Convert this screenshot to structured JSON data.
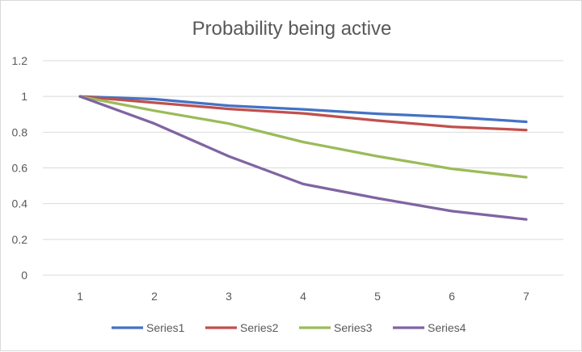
{
  "chart_data": {
    "type": "line",
    "title": "Probability being active",
    "xlabel": "",
    "ylabel": "",
    "categories": [
      "1",
      "2",
      "3",
      "4",
      "5",
      "6",
      "7"
    ],
    "ylim": [
      0,
      1.2
    ],
    "yticks": [
      0,
      0.2,
      0.4,
      0.6,
      0.8,
      1,
      1.2
    ],
    "ytick_labels": [
      "0",
      "0.2",
      "0.4",
      "0.6",
      "0.8",
      "1",
      "1.2"
    ],
    "grid": true,
    "legend_position": "bottom",
    "series": [
      {
        "name": "Series1",
        "color": "#4472c4",
        "values": [
          1.0,
          0.985,
          0.948,
          0.928,
          0.903,
          0.885,
          0.858
        ]
      },
      {
        "name": "Series2",
        "color": "#c0504d",
        "values": [
          1.0,
          0.965,
          0.93,
          0.905,
          0.865,
          0.83,
          0.812
        ]
      },
      {
        "name": "Series3",
        "color": "#9bbb59",
        "values": [
          1.0,
          0.92,
          0.848,
          0.745,
          0.665,
          0.595,
          0.548
        ]
      },
      {
        "name": "Series4",
        "color": "#8064a2",
        "values": [
          1.0,
          0.848,
          0.665,
          0.51,
          0.43,
          0.358,
          0.312
        ]
      }
    ]
  }
}
